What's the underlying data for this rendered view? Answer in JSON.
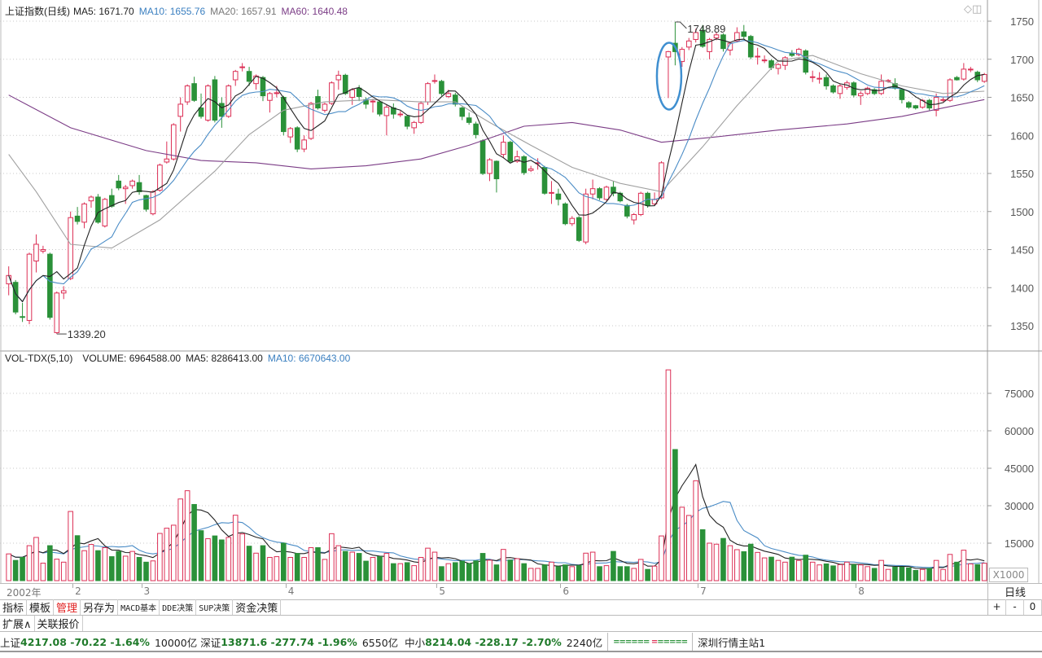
{
  "price_header": {
    "title": "上证指数(日线)",
    "ma5": "MA5: 1671.70",
    "ma10": "MA10: 1655.76",
    "ma20": "MA20: 1657.91",
    "ma60": "MA60: 1640.48"
  },
  "volume_header": {
    "title": "VOL-TDX(5,10)",
    "volume": "VOLUME: 6964588.00",
    "ma5": "MA5: 8286413.00",
    "ma10": "MA10: 6670643.00"
  },
  "colors": {
    "up": "#dc2f55",
    "down": "#2a9139",
    "ma5": "#222222",
    "ma10": "#4a8cc6",
    "ma20": "#a0a0a0",
    "ma60": "#7b3c86",
    "annotation": "#3f8fd0"
  },
  "icons": {
    "diamond": "diamond-icon",
    "window": "window-icon"
  },
  "chart_data": [
    {
      "type": "candlestick",
      "title": "上证指数(日线)",
      "ylim": [
        1320,
        1770
      ],
      "yticks": [
        1350,
        1400,
        1450,
        1500,
        1550,
        1600,
        1650,
        1700,
        1750
      ],
      "grid": true,
      "fields": [
        "open",
        "high",
        "low",
        "close"
      ],
      "candles": [
        [
          1405,
          1428,
          1390,
          1416
        ],
        [
          1407,
          1410,
          1365,
          1368
        ],
        [
          1362,
          1380,
          1355,
          1361
        ],
        [
          1357,
          1446,
          1352,
          1444
        ],
        [
          1435,
          1470,
          1420,
          1457
        ],
        [
          1448,
          1455,
          1445,
          1450
        ],
        [
          1444,
          1446,
          1358,
          1361
        ],
        [
          1341,
          1395,
          1339.2,
          1393
        ],
        [
          1393,
          1402,
          1385,
          1396
        ],
        [
          1412,
          1500,
          1410,
          1492
        ],
        [
          1494,
          1506,
          1483,
          1487
        ],
        [
          1486,
          1512,
          1478,
          1510
        ],
        [
          1514,
          1521,
          1505,
          1519
        ],
        [
          1519,
          1523,
          1484,
          1486
        ],
        [
          1481,
          1518,
          1479,
          1516
        ],
        [
          1521,
          1530,
          1505,
          1507
        ],
        [
          1540,
          1548,
          1528,
          1531
        ],
        [
          1530,
          1535,
          1510,
          1532
        ],
        [
          1534,
          1542,
          1530,
          1540
        ],
        [
          1538,
          1548,
          1522,
          1526
        ],
        [
          1521,
          1522,
          1500,
          1503
        ],
        [
          1497,
          1528,
          1495,
          1526
        ],
        [
          1528,
          1563,
          1526,
          1561
        ],
        [
          1565,
          1592,
          1563,
          1569
        ],
        [
          1569,
          1616,
          1567,
          1614
        ],
        [
          1625,
          1650,
          1605,
          1641
        ],
        [
          1644,
          1667,
          1640,
          1665
        ],
        [
          1668,
          1677,
          1644,
          1646
        ],
        [
          1636,
          1655,
          1622,
          1625
        ],
        [
          1620,
          1667,
          1618,
          1665
        ],
        [
          1673,
          1678,
          1617,
          1620
        ],
        [
          1642,
          1650,
          1610,
          1625
        ],
        [
          1625,
          1667,
          1623,
          1665
        ],
        [
          1673,
          1686,
          1665,
          1684
        ],
        [
          1689,
          1695,
          1684,
          1690
        ],
        [
          1684,
          1690,
          1665,
          1671
        ],
        [
          1668,
          1680,
          1660,
          1678
        ],
        [
          1676,
          1678,
          1645,
          1652
        ],
        [
          1646,
          1657,
          1630,
          1655
        ],
        [
          1655,
          1665,
          1650,
          1656
        ],
        [
          1650,
          1652,
          1600,
          1605
        ],
        [
          1598,
          1611,
          1590,
          1609
        ],
        [
          1610,
          1612,
          1578,
          1582
        ],
        [
          1582,
          1600,
          1578,
          1594
        ],
        [
          1596,
          1644,
          1594,
          1642
        ],
        [
          1651,
          1660,
          1634,
          1636
        ],
        [
          1633,
          1643,
          1630,
          1641
        ],
        [
          1642,
          1671,
          1640,
          1669
        ],
        [
          1673,
          1685,
          1660,
          1679
        ],
        [
          1679,
          1681,
          1653,
          1655
        ],
        [
          1650,
          1662,
          1640,
          1660
        ],
        [
          1662,
          1666,
          1645,
          1651
        ],
        [
          1647,
          1650,
          1635,
          1641
        ],
        [
          1644,
          1648,
          1630,
          1645
        ],
        [
          1644,
          1646,
          1625,
          1628
        ],
        [
          1626,
          1640,
          1600,
          1637
        ],
        [
          1636,
          1642,
          1622,
          1628
        ],
        [
          1627,
          1632,
          1624,
          1628
        ],
        [
          1625,
          1627,
          1608,
          1612
        ],
        [
          1610,
          1619,
          1602,
          1617
        ],
        [
          1617,
          1645,
          1615,
          1642
        ],
        [
          1644,
          1670,
          1640,
          1668
        ],
        [
          1671,
          1680,
          1668,
          1672
        ],
        [
          1671,
          1673,
          1652,
          1655
        ],
        [
          1651,
          1660,
          1649,
          1655
        ],
        [
          1653,
          1656,
          1638,
          1641
        ],
        [
          1636,
          1638,
          1620,
          1625
        ],
        [
          1623,
          1630,
          1614,
          1617
        ],
        [
          1615,
          1618,
          1596,
          1601
        ],
        [
          1593,
          1595,
          1548,
          1550
        ],
        [
          1550,
          1570,
          1540,
          1568
        ],
        [
          1566,
          1567,
          1525,
          1543
        ],
        [
          1575,
          1600,
          1570,
          1591
        ],
        [
          1591,
          1593,
          1564,
          1566
        ],
        [
          1566,
          1580,
          1564,
          1572
        ],
        [
          1572,
          1574,
          1548,
          1551
        ],
        [
          1554,
          1560,
          1552,
          1556
        ],
        [
          1563,
          1570,
          1555,
          1564
        ],
        [
          1558,
          1560,
          1522,
          1524
        ],
        [
          1524,
          1540,
          1510,
          1525
        ],
        [
          1523,
          1530,
          1508,
          1516
        ],
        [
          1510,
          1512,
          1482,
          1484
        ],
        [
          1484,
          1494,
          1481,
          1491
        ],
        [
          1492,
          1494,
          1460,
          1462
        ],
        [
          1460,
          1530,
          1457,
          1523
        ],
        [
          1523,
          1542,
          1516,
          1530
        ],
        [
          1530,
          1532,
          1515,
          1518
        ],
        [
          1516,
          1534,
          1514,
          1532
        ],
        [
          1532,
          1540,
          1520,
          1524
        ],
        [
          1524,
          1526,
          1512,
          1514
        ],
        [
          1508,
          1510,
          1491,
          1494
        ],
        [
          1489,
          1498,
          1483,
          1496
        ],
        [
          1496,
          1526,
          1494,
          1524
        ],
        [
          1524,
          1526,
          1505,
          1508
        ],
        [
          1510,
          1525,
          1508,
          1516
        ],
        [
          1518,
          1566,
          1516,
          1564
        ],
        [
          1703,
          1711,
          1649,
          1710
        ],
        [
          1721,
          1748.89,
          1692,
          1710
        ],
        [
          1697,
          1716,
          1690,
          1713
        ],
        [
          1716,
          1728,
          1712,
          1724
        ],
        [
          1726,
          1740,
          1722,
          1735
        ],
        [
          1738,
          1745,
          1715,
          1717
        ],
        [
          1710,
          1728,
          1700,
          1726
        ],
        [
          1728,
          1736,
          1725,
          1732
        ],
        [
          1732,
          1734,
          1710,
          1714
        ],
        [
          1712,
          1723,
          1705,
          1721
        ],
        [
          1724,
          1742,
          1722,
          1735
        ],
        [
          1736,
          1745,
          1726,
          1730
        ],
        [
          1730,
          1732,
          1700,
          1703
        ],
        [
          1703,
          1715,
          1693,
          1704
        ],
        [
          1698,
          1705,
          1695,
          1699
        ],
        [
          1698,
          1700,
          1686,
          1689
        ],
        [
          1688,
          1695,
          1680,
          1693
        ],
        [
          1692,
          1704,
          1686,
          1702
        ],
        [
          1708,
          1712,
          1703,
          1705
        ],
        [
          1706,
          1715,
          1704,
          1713
        ],
        [
          1711,
          1713,
          1680,
          1683
        ],
        [
          1676,
          1685,
          1670,
          1677
        ],
        [
          1674,
          1683,
          1668,
          1675
        ],
        [
          1676,
          1680,
          1660,
          1665
        ],
        [
          1665,
          1667,
          1655,
          1657
        ],
        [
          1655,
          1668,
          1648,
          1665
        ],
        [
          1663,
          1672,
          1660,
          1669
        ],
        [
          1669,
          1671,
          1650,
          1653
        ],
        [
          1652,
          1658,
          1640,
          1655
        ],
        [
          1655,
          1664,
          1653,
          1662
        ],
        [
          1660,
          1662,
          1653,
          1655
        ],
        [
          1655,
          1680,
          1653,
          1671
        ],
        [
          1671,
          1674,
          1669,
          1672
        ],
        [
          1668,
          1675,
          1660,
          1662
        ],
        [
          1660,
          1662,
          1642,
          1647
        ],
        [
          1643,
          1645,
          1635,
          1637
        ],
        [
          1639,
          1640,
          1634,
          1636
        ],
        [
          1637,
          1648,
          1635,
          1646
        ],
        [
          1646,
          1648,
          1633,
          1636
        ],
        [
          1633,
          1655,
          1625,
          1650
        ],
        [
          1646,
          1650,
          1644,
          1647
        ],
        [
          1646,
          1675,
          1644,
          1673
        ],
        [
          1676,
          1678,
          1672,
          1673
        ],
        [
          1674,
          1695,
          1672,
          1687
        ],
        [
          1686,
          1690,
          1683,
          1687
        ],
        [
          1683,
          1685,
          1670,
          1673
        ],
        [
          1671,
          1682,
          1669,
          1680
        ]
      ],
      "ma20": [
        [
          0,
          1575
        ],
        [
          4,
          1526
        ],
        [
          9,
          1457
        ],
        [
          15,
          1452
        ],
        [
          22,
          1489
        ],
        [
          30,
          1553
        ],
        [
          35,
          1601
        ],
        [
          40,
          1633
        ],
        [
          46,
          1644
        ],
        [
          53,
          1647
        ],
        [
          60,
          1644
        ],
        [
          65,
          1644
        ],
        [
          70,
          1617
        ],
        [
          76,
          1587
        ],
        [
          82,
          1558
        ],
        [
          89,
          1537
        ],
        [
          95,
          1526
        ],
        [
          101,
          1585
        ],
        [
          106,
          1639
        ],
        [
          112,
          1698
        ],
        [
          117,
          1705
        ],
        [
          124,
          1681
        ],
        [
          130,
          1665
        ],
        [
          136,
          1655
        ],
        [
          142,
          1658
        ]
      ],
      "ma60": [
        [
          0,
          1653
        ],
        [
          9,
          1610
        ],
        [
          20,
          1580
        ],
        [
          28,
          1567
        ],
        [
          36,
          1564
        ],
        [
          44,
          1556
        ],
        [
          52,
          1560
        ],
        [
          60,
          1569
        ],
        [
          67,
          1587
        ],
        [
          75,
          1612
        ],
        [
          82,
          1617
        ],
        [
          89,
          1607
        ],
        [
          95,
          1591
        ],
        [
          103,
          1598
        ],
        [
          112,
          1607
        ],
        [
          122,
          1615
        ],
        [
          130,
          1625
        ],
        [
          136,
          1636
        ],
        [
          142,
          1647
        ]
      ],
      "annotations": [
        {
          "text": "1748.89",
          "candle": 97,
          "kind": "high"
        },
        {
          "text": "1339.20",
          "candle": 7,
          "kind": "low"
        },
        {
          "kind": "ellipse",
          "candle": 96
        }
      ]
    },
    {
      "type": "bar",
      "title": "VOL-TDX(5,10)",
      "unit": "X1000",
      "ylim": [
        0,
        90000
      ],
      "yticks": [
        15000,
        30000,
        45000,
        60000,
        75000
      ],
      "grid": true,
      "values": [
        10700,
        8100,
        9300,
        14000,
        17300,
        7000,
        14000,
        8600,
        7400,
        27700,
        18000,
        12000,
        14500,
        12000,
        13200,
        9600,
        11700,
        9800,
        11700,
        9300,
        7400,
        7900,
        18900,
        21000,
        22200,
        32700,
        36000,
        30500,
        20000,
        16800,
        17900,
        16300,
        17300,
        26200,
        18700,
        13800,
        11000,
        14000,
        9300,
        9600,
        15000,
        9300,
        10900,
        9300,
        13200,
        13200,
        8500,
        18800,
        14000,
        11700,
        11400,
        10900,
        7800,
        9300,
        9600,
        10900,
        6800,
        6800,
        7200,
        6000,
        9300,
        13000,
        11400,
        5600,
        6800,
        7200,
        7800,
        6800,
        7900,
        10900,
        8200,
        6300,
        12500,
        8200,
        8800,
        6800,
        4900,
        4900,
        6300,
        7400,
        5600,
        6300,
        5600,
        6000,
        11000,
        11400,
        5600,
        6000,
        11700,
        5600,
        5600,
        4900,
        8500,
        4500,
        5800,
        17900,
        84400,
        52500,
        29400,
        26100,
        40000,
        20400,
        15000,
        14600,
        16900,
        14000,
        12400,
        11600,
        14600,
        11300,
        9100,
        9400,
        8100,
        7400,
        9400,
        8100,
        10200,
        7400,
        6300,
        6700,
        5900,
        6400,
        7400,
        6400,
        6300,
        5600,
        4900,
        8100,
        4500,
        5400,
        5400,
        5100,
        4100,
        4500,
        4900,
        8100,
        4500,
        10500,
        7400,
        12200,
        6700,
        6400,
        6965
      ]
    }
  ],
  "x_axis": {
    "months": [
      {
        "label": "2002年",
        "candle": 0
      },
      {
        "label": "2",
        "candle": 10
      },
      {
        "label": "3",
        "candle": 20
      },
      {
        "label": "4",
        "candle": 41
      },
      {
        "label": "5",
        "candle": 63
      },
      {
        "label": "6",
        "candle": 81
      },
      {
        "label": "7",
        "candle": 101
      },
      {
        "label": "8",
        "candle": 124
      }
    ]
  },
  "toolbar": {
    "buttons": [
      "指标",
      "模板",
      "管理",
      "另存为",
      "MACD基本",
      "DDE决策",
      "SUP决策",
      "资金决策"
    ],
    "active": "管理",
    "period": "日线",
    "zoom": [
      "+",
      "-",
      "0"
    ]
  },
  "toolbar2": {
    "buttons": [
      "扩展∧",
      "关联报价"
    ]
  },
  "status": {
    "sh_label": "上证",
    "sh_values": "4217.08 -70.22 -1.64%",
    "sh_amount": "10000亿",
    "sz_label": "深证",
    "sz_values": "13871.6 -277.74 -1.96%",
    "sz_amount": "6550亿",
    "zx_label": "中小",
    "zx_values": "8214.04 -228.17 -2.70%",
    "zx_amount": "2240亿",
    "server": "深圳行情主站1"
  }
}
